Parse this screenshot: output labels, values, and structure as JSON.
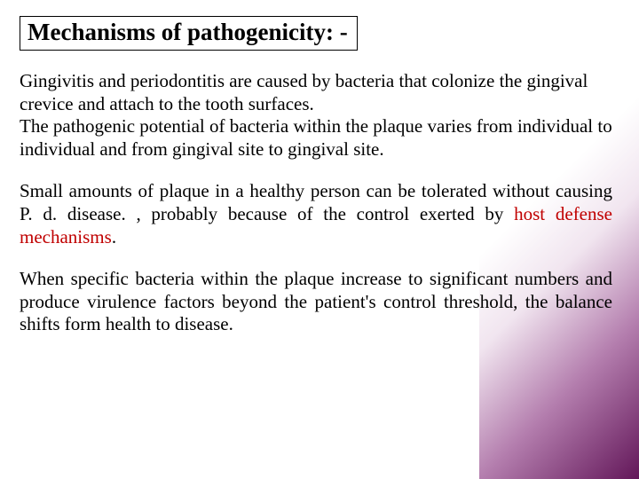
{
  "colors": {
    "background": "#ffffff",
    "text": "#000000",
    "highlight": "#c00000",
    "corner_gradient_start": "rgba(255,255,255,0)",
    "corner_gradient_mid": "rgba(160,80,150,0.15)",
    "corner_gradient_end": "rgba(90,10,80,0.95)",
    "title_border": "#000000"
  },
  "typography": {
    "font_family": "Times New Roman",
    "title_fontsize": 27,
    "title_weight": "bold",
    "body_fontsize": 21,
    "body_lineheight": 1.22
  },
  "title": "Mechanisms of pathogenicity: -",
  "paragraphs": {
    "p1": " Gingivitis and periodontitis are caused by bacteria that colonize the gingival crevice and attach to the tooth surfaces.\n  The pathogenic potential of bacteria within the plaque varies from individual to individual and from gingival site to gingival site.",
    "p2_pre": "  Small amounts of plaque in a healthy person can be tolerated without causing P. d. disease. , probably because of the control exerted by ",
    "p2_highlight": "host defense mechanisms",
    "p2_post": ".",
    "p3": " When specific bacteria within the plaque increase to significant numbers and produce virulence factors beyond the patient's control threshold, the balance shifts form health to disease."
  }
}
